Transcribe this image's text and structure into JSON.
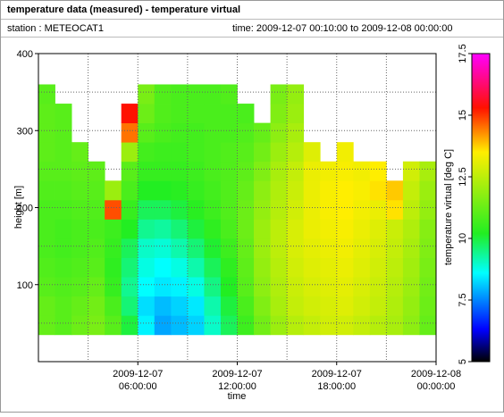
{
  "chart_data": {
    "type": "heatmap",
    "title": "temperature data (measured) - temperature virtual",
    "station": "station : METEOCAT1",
    "time_range": "time: 2009-12-07 00:10:00 to 2009-12-08 00:00:00",
    "ylabel": "height [m]",
    "xlabel": "time",
    "colorbar_label": "temperature virtual [deg C]",
    "xlim": [
      0,
      24
    ],
    "ylim": [
      0,
      400
    ],
    "xticks": [
      {
        "value": 6,
        "label": "2009-12-07"
      },
      {
        "value": 12,
        "label": "2009-12-07"
      },
      {
        "value": 18,
        "label": "2009-12-07"
      },
      {
        "value": 24,
        "label": "2009-12-08"
      }
    ],
    "xtick_times": [
      "06:00:00",
      "12:00:00",
      "18:00:00",
      "00:00:00"
    ],
    "xminor": [
      3,
      9,
      15,
      21
    ],
    "yticks": [
      100,
      200,
      300,
      400
    ],
    "yminor": [
      50,
      150,
      250,
      350
    ],
    "grid": true,
    "clim": [
      5,
      17.5
    ],
    "cticks": [
      5,
      7.5,
      10,
      12.5,
      15,
      17.5
    ],
    "colormap": [
      [
        5,
        "#000000"
      ],
      [
        6.3,
        "#0000ff"
      ],
      [
        8.6,
        "#00ffff"
      ],
      [
        10.2,
        "#22ee22"
      ],
      [
        13.5,
        "#ffee00"
      ],
      [
        15.3,
        "#ff1100"
      ],
      [
        17.5,
        "#ff00ff"
      ]
    ],
    "x_edges": [
      0,
      1,
      2,
      3,
      4,
      5,
      6,
      7,
      8,
      9,
      10,
      11,
      12,
      13,
      14,
      15,
      16,
      17,
      18,
      19,
      20,
      21,
      22,
      23,
      24
    ],
    "y_edges": [
      35,
      60,
      85,
      110,
      135,
      160,
      185,
      210,
      235,
      260,
      285,
      310,
      335,
      360
    ],
    "z": [
      [
        11.2,
        11.0,
        11.3,
        11.5,
        11.0,
        10.0,
        8.5,
        7.8,
        8.0,
        8.2,
        9.0,
        9.8,
        10.6,
        11.4,
        12.0,
        12.4,
        12.6,
        12.8,
        12.8,
        12.6,
        12.4,
        12.2,
        11.8,
        11.2
      ],
      [
        11.2,
        11.0,
        11.2,
        11.4,
        10.8,
        9.6,
        8.3,
        8.0,
        8.2,
        8.4,
        9.2,
        10.0,
        10.8,
        11.6,
        12.2,
        12.6,
        12.8,
        12.9,
        13.0,
        12.8,
        12.6,
        12.3,
        11.9,
        11.3
      ],
      [
        11.0,
        10.9,
        11.0,
        11.2,
        10.5,
        9.4,
        8.6,
        8.4,
        8.5,
        8.8,
        9.5,
        10.2,
        11.0,
        11.8,
        12.3,
        12.7,
        12.9,
        13.0,
        13.1,
        12.9,
        12.7,
        12.4,
        12.0,
        11.4
      ],
      [
        10.9,
        10.8,
        10.9,
        11.0,
        10.4,
        9.6,
        8.8,
        8.6,
        8.8,
        9.2,
        9.8,
        10.4,
        11.1,
        11.9,
        12.4,
        12.8,
        13.0,
        13.1,
        13.2,
        13.0,
        12.8,
        12.5,
        12.1,
        11.5
      ],
      [
        10.8,
        10.7,
        10.8,
        10.9,
        10.5,
        9.8,
        9.0,
        8.9,
        9.2,
        9.6,
        10.1,
        10.6,
        11.2,
        12.0,
        12.5,
        12.9,
        13.1,
        13.2,
        13.3,
        13.1,
        12.9,
        12.6,
        12.2,
        11.6
      ],
      [
        10.8,
        10.7,
        10.8,
        10.8,
        10.6,
        10.2,
        9.4,
        9.3,
        9.6,
        10.0,
        10.4,
        10.8,
        11.3,
        12.0,
        12.5,
        12.9,
        13.2,
        13.3,
        13.4,
        13.2,
        13.0,
        12.7,
        12.3,
        11.7
      ],
      [
        10.8,
        10.8,
        10.9,
        10.9,
        14.8,
        10.5,
        9.8,
        9.8,
        10.0,
        10.3,
        10.6,
        10.9,
        11.3,
        11.9,
        12.4,
        12.8,
        13.2,
        13.4,
        13.5,
        13.3,
        13.2,
        13.6,
        12.5,
        11.9
      ],
      [
        10.9,
        10.9,
        11.0,
        11.0,
        12.0,
        10.8,
        10.2,
        10.2,
        10.3,
        10.5,
        10.7,
        10.9,
        11.2,
        11.8,
        12.3,
        12.7,
        13.2,
        13.4,
        13.5,
        13.4,
        13.6,
        13.8,
        12.6,
        12.0
      ],
      [
        11.0,
        11.0,
        11.1,
        11.1,
        null,
        11.0,
        10.5,
        10.5,
        10.5,
        10.6,
        10.8,
        10.9,
        11.1,
        11.6,
        12.2,
        12.6,
        13.2,
        13.3,
        13.4,
        13.3,
        13.5,
        null,
        12.8,
        12.2
      ],
      [
        11.1,
        11.0,
        11.2,
        null,
        null,
        12.0,
        10.7,
        10.6,
        10.6,
        10.7,
        10.8,
        10.9,
        11.0,
        11.4,
        12.0,
        12.4,
        13.0,
        null,
        13.3,
        null,
        null,
        null,
        null,
        null
      ],
      [
        11.1,
        11.0,
        null,
        null,
        null,
        14.5,
        11.0,
        10.8,
        10.7,
        10.7,
        10.8,
        10.8,
        10.9,
        11.2,
        11.8,
        12.2,
        null,
        null,
        null,
        null,
        null,
        null,
        null,
        null
      ],
      [
        11.1,
        11.0,
        null,
        null,
        null,
        15.3,
        11.3,
        10.9,
        10.8,
        10.8,
        10.8,
        10.8,
        10.8,
        null,
        11.6,
        12.0,
        null,
        null,
        null,
        null,
        null,
        null,
        null,
        null
      ],
      [
        11.0,
        null,
        null,
        null,
        null,
        null,
        11.5,
        10.9,
        10.8,
        10.8,
        10.8,
        10.9,
        null,
        null,
        11.5,
        11.9,
        null,
        null,
        null,
        null,
        null,
        null,
        null,
        null
      ]
    ]
  }
}
